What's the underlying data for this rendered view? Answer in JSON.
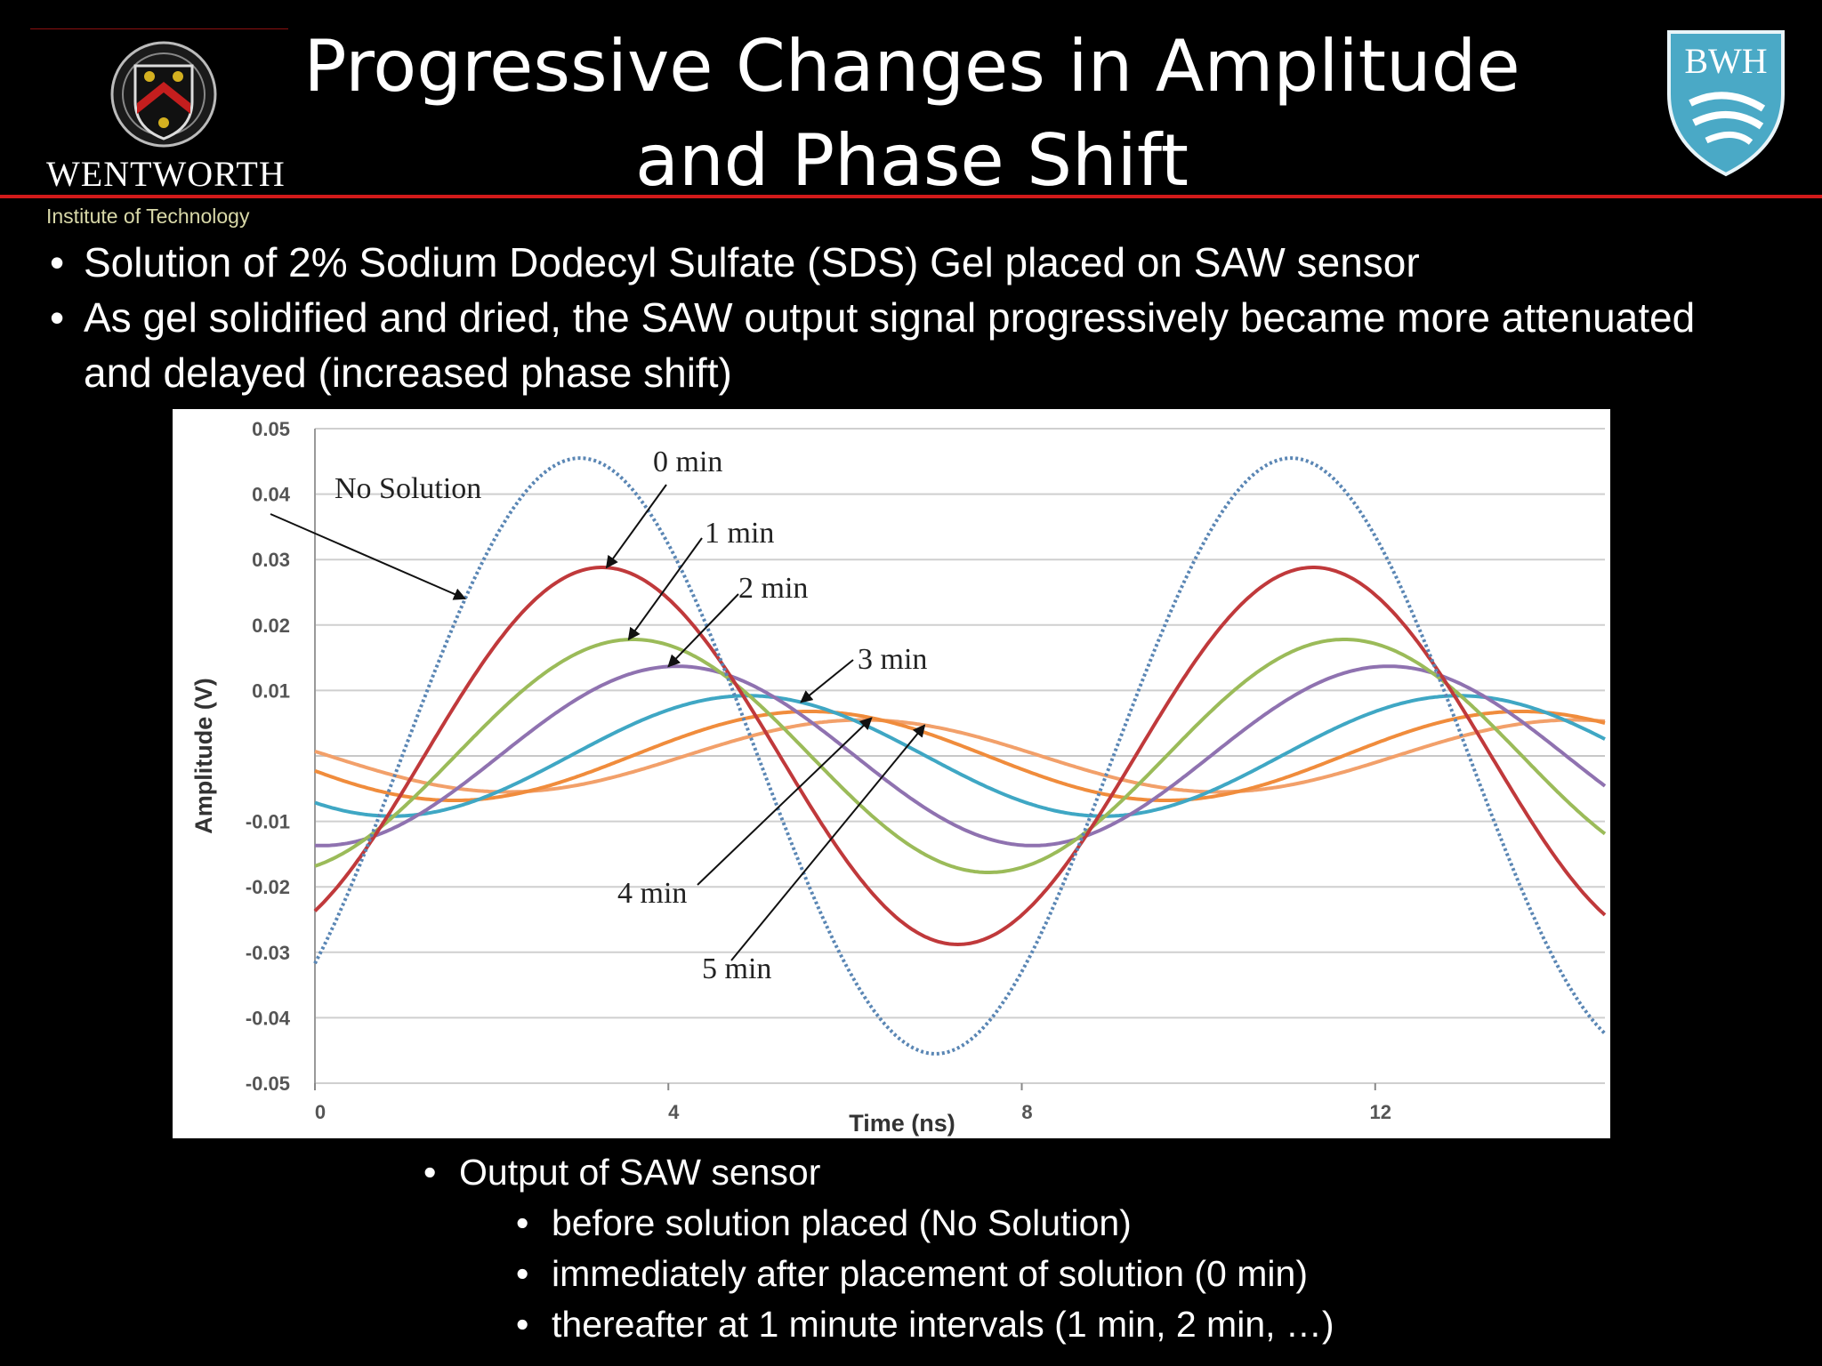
{
  "title": {
    "line1": "Progressive Changes in Amplitude",
    "line2": "and Phase Shift"
  },
  "logos": {
    "left_wordmark": "WENTWORTH",
    "left_subtitle": "Institute of Technology",
    "right_badge": "BWH"
  },
  "bullets": [
    "Solution of 2% Sodium Dodecyl Sulfate (SDS) Gel placed on SAW sensor",
    "As gel solidified and dried, the SAW output signal progressively became more attenuated and delayed (increased phase shift)"
  ],
  "chart_data": {
    "type": "line",
    "xlabel": "Time (ns)",
    "ylabel": "Amplitude (V)",
    "xlim": [
      0,
      14.6
    ],
    "ylim": [
      -0.05,
      0.05
    ],
    "xticks": [
      "0",
      "4",
      "8",
      "12"
    ],
    "yticks": [
      "0.05",
      "0.04",
      "0.03",
      "0.02",
      "0.01",
      "-0.01",
      "-0.02",
      "-0.03",
      "-0.04",
      "-0.05"
    ],
    "grid": true,
    "period_ns": 8.05,
    "series": [
      {
        "name": "No Solution",
        "color": "#5a86b4",
        "dashed": true,
        "amplitude": 0.0455,
        "peak_time": 3.0
      },
      {
        "name": "0 min",
        "color": "#c0393b",
        "amplitude": 0.0288,
        "peak_time": 3.25
      },
      {
        "name": "1 min",
        "color": "#9bbb59",
        "amplitude": 0.0178,
        "peak_time": 3.6
      },
      {
        "name": "2 min",
        "color": "#8f72b0",
        "amplitude": 0.0137,
        "peak_time": 4.1
      },
      {
        "name": "3 min",
        "color": "#3fa7c4",
        "amplitude": 0.0092,
        "peak_time": 4.9
      },
      {
        "name": "4 min",
        "color": "#f08c3c",
        "amplitude": 0.0068,
        "peak_time": 5.6
      },
      {
        "name": "5 min",
        "color": "#f2a06a",
        "amplitude": 0.0055,
        "peak_time": 6.2
      }
    ],
    "annotations": [
      "No Solution",
      "0 min",
      "1 min",
      "2 min",
      "3 min",
      "4 min",
      "5 min"
    ]
  },
  "bottom": {
    "heading": "Output of SAW sensor",
    "items": [
      "before solution placed (No Solution)",
      "immediately after placement of solution (0 min)",
      "thereafter at 1 minute intervals (1 min, 2 min, …)"
    ]
  }
}
